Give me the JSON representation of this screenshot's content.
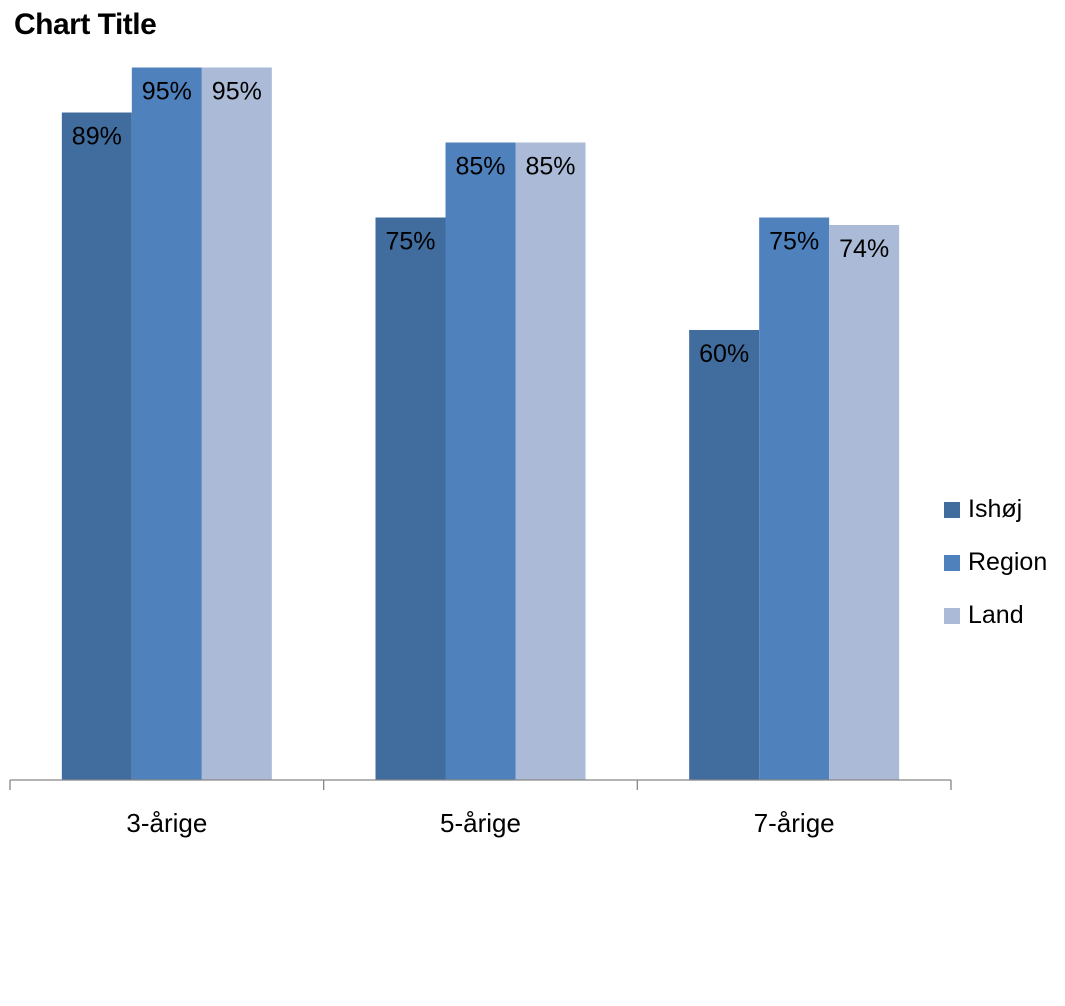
{
  "chart_data": {
    "type": "bar",
    "title": "Chart Title",
    "categories": [
      "3-årige",
      "5-årige",
      "7-årige"
    ],
    "series": [
      {
        "name": "Ishøj",
        "values": [
          89,
          75,
          60
        ],
        "labels": [
          "89%",
          "75%",
          "60%"
        ],
        "color": "#416C9E"
      },
      {
        "name": "Region",
        "values": [
          95,
          85,
          75
        ],
        "labels": [
          "95%",
          "85%",
          "75%"
        ],
        "color": "#4F81BD"
      },
      {
        "name": "Land",
        "values": [
          95,
          85,
          74
        ],
        "labels": [
          "95%",
          "85%",
          "74%"
        ],
        "color": "#AABAD7"
      }
    ],
    "ylim": [
      0,
      100
    ],
    "grid": false,
    "legend_position": "right"
  }
}
